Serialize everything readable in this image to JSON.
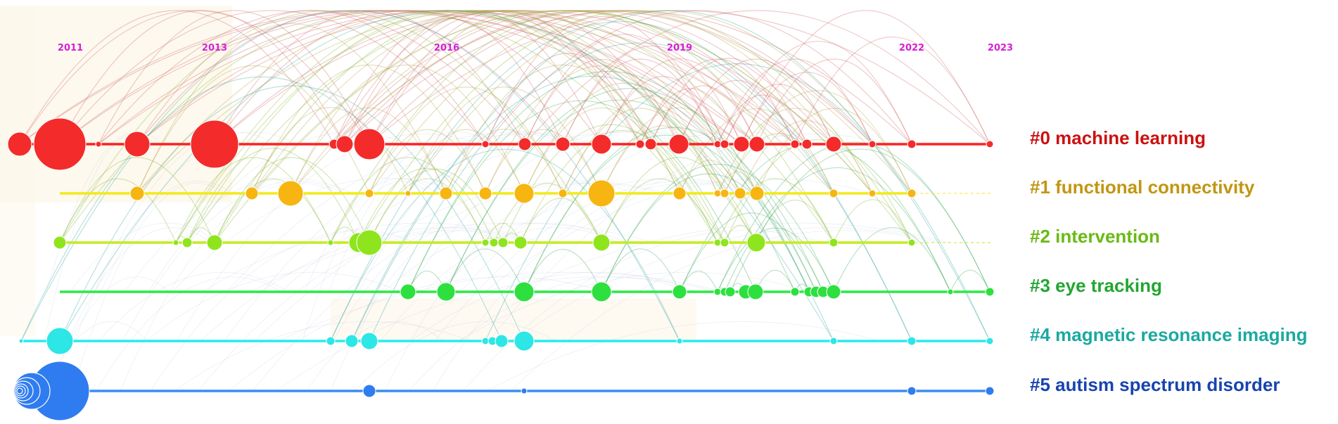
{
  "colors": {
    "year_labels": "#d61fd6",
    "background_tint": "#fdf7ea"
  },
  "years": [
    "2011",
    "2013",
    "2016",
    "2019",
    "2022",
    "2023"
  ],
  "clusters": [
    {
      "label": "#0 machine learning",
      "line_color": "#ff2020",
      "node_color": "#f42b2b",
      "label_color": "#cc1111",
      "arc_color": "#d26a6a"
    },
    {
      "label": "#1 functional connectivity",
      "line_color": "#f2ea19",
      "node_color": "#f7b512",
      "label_color": "#c29613",
      "arc_color": "#b4a44a"
    },
    {
      "label": "#2 intervention",
      "line_color": "#c4ec1c",
      "node_color": "#8fe51d",
      "label_color": "#6aba16",
      "arc_color": "#86b634"
    },
    {
      "label": "#3 eye tracking",
      "line_color": "#2ce845",
      "node_color": "#2de03f",
      "label_color": "#22a633",
      "arc_color": "#3caa5a"
    },
    {
      "label": "#4 magnetic resonance imaging",
      "line_color": "#27ecec",
      "node_color": "#2de6e6",
      "label_color": "#1aa9a1",
      "arc_color": "#38a8a4"
    },
    {
      "label": "#5 autism spectrum disorder",
      "line_color": "#3a8ef0",
      "node_color": "#2f7cf0",
      "label_color": "#1844b0",
      "arc_color": "#5a78c8"
    }
  ]
}
